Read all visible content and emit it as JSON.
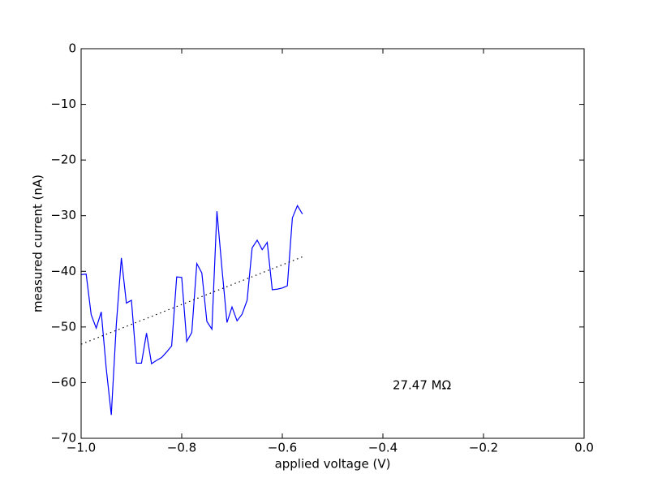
{
  "chart_data": {
    "type": "line",
    "xlabel": "applied voltage (V)",
    "ylabel": "measured current (nA)",
    "annotation": "27.47 MΩ",
    "xlim": [
      -1.0,
      0.0
    ],
    "ylim": [
      -70,
      0
    ],
    "xticks": [
      {
        "value": -1.0,
        "label": "−1.0"
      },
      {
        "value": -0.8,
        "label": "−0.8"
      },
      {
        "value": -0.6,
        "label": "−0.6"
      },
      {
        "value": -0.4,
        "label": "−0.4"
      },
      {
        "value": -0.2,
        "label": "−0.2"
      },
      {
        "value": 0.0,
        "label": "0.0"
      }
    ],
    "yticks": [
      {
        "value": -70,
        "label": "−70"
      },
      {
        "value": -60,
        "label": "−60"
      },
      {
        "value": -50,
        "label": "−50"
      },
      {
        "value": -40,
        "label": "−40"
      },
      {
        "value": -30,
        "label": "−30"
      },
      {
        "value": -20,
        "label": "−20"
      },
      {
        "value": -10,
        "label": "−10"
      },
      0
    ],
    "series": [
      {
        "color": "#0000ff",
        "dash": "solid",
        "x": [
          -1.0,
          -0.99,
          -0.98,
          -0.97,
          -0.96,
          -0.95,
          -0.94,
          -0.93,
          -0.92,
          -0.91,
          -0.9,
          -0.89,
          -0.88,
          -0.87,
          -0.86,
          -0.85,
          -0.84,
          -0.83,
          -0.82,
          -0.81,
          -0.8,
          -0.79,
          -0.78,
          -0.77,
          -0.76,
          -0.75,
          -0.74,
          -0.73,
          -0.72,
          -0.71,
          -0.7,
          -0.69,
          -0.68,
          -0.67,
          -0.66,
          -0.65,
          -0.64,
          -0.63,
          -0.62,
          -0.61,
          -0.6,
          -0.59,
          -0.58,
          -0.57,
          -0.56
        ],
        "values": [
          -40.6,
          -40.5,
          -47.8,
          -50.2,
          -47.3,
          -57.5,
          -65.8,
          -49.5,
          -37.6,
          -45.7,
          -45.2,
          -56.5,
          -56.5,
          -51.1,
          -56.6,
          -56.0,
          -55.5,
          -54.5,
          -53.4,
          -41.0,
          -41.1,
          -52.6,
          -51.0,
          -38.6,
          -40.3,
          -49.0,
          -50.4,
          -29.2,
          -39.5,
          -49.2,
          -46.4,
          -48.9,
          -47.7,
          -45.2,
          -35.8,
          -34.4,
          -36.1,
          -34.8,
          -43.3,
          -43.2,
          -43.0,
          -42.6,
          -30.4,
          -28.2,
          -29.7
        ]
      },
      {
        "color": "#000000",
        "dash": "dotted",
        "x": [
          -1.0,
          -0.56
        ],
        "values": [
          -53.1,
          -37.4
        ]
      }
    ]
  }
}
